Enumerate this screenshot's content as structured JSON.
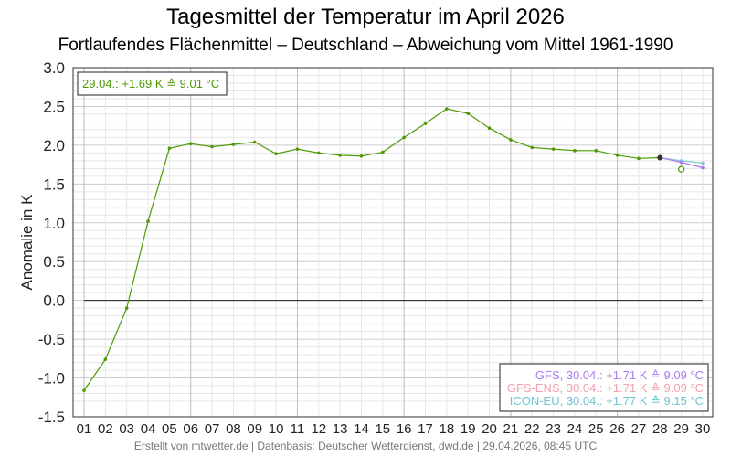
{
  "chart_data": {
    "type": "line",
    "title": "Tagesmittel der Temperatur im April 2026",
    "subtitle": "Fortlaufendes Flächenmittel – Deutschland – Abweichung vom Mittel 1961-1990",
    "ylabel": "Anomalie in K",
    "xlabel": "",
    "ylim": [
      -1.5,
      3.0
    ],
    "yticks": [
      "-1.5",
      "-1.0",
      "-0.5",
      "0.0",
      "0.5",
      "1.0",
      "1.5",
      "2.0",
      "2.5",
      "3.0"
    ],
    "xticks": [
      "01",
      "02",
      "03",
      "04",
      "05",
      "06",
      "07",
      "08",
      "09",
      "10",
      "11",
      "12",
      "13",
      "14",
      "15",
      "16",
      "17",
      "18",
      "19",
      "20",
      "21",
      "22",
      "23",
      "24",
      "25",
      "26",
      "27",
      "28",
      "29",
      "30"
    ],
    "grid": true,
    "series": [
      {
        "key": "obs",
        "color": "#4e9a06",
        "x": [
          1,
          2,
          3,
          4,
          5,
          6,
          7,
          8,
          9,
          10,
          11,
          12,
          13,
          14,
          15,
          16,
          17,
          18,
          19,
          20,
          21,
          22,
          23,
          24,
          25,
          26,
          27,
          28
        ],
        "values": [
          -1.16,
          -0.76,
          -0.1,
          1.02,
          1.96,
          2.02,
          1.98,
          2.01,
          2.04,
          1.89,
          1.95,
          1.9,
          1.87,
          1.86,
          1.91,
          2.1,
          2.28,
          2.47,
          2.41,
          2.22,
          2.07,
          1.97,
          1.95,
          1.93,
          1.93,
          1.87,
          1.83,
          1.84
        ]
      },
      {
        "name": "ICON-EU",
        "color": "#7ecbd6",
        "x": [
          28,
          29,
          30
        ],
        "values": [
          1.84,
          1.8,
          1.77
        ]
      },
      {
        "name": "GFS-ENS",
        "color": "#f2a0b0",
        "x": [
          28,
          29,
          30
        ],
        "values": [
          1.84,
          1.78,
          1.71
        ]
      },
      {
        "name": "GFS",
        "color": "#a97cf0",
        "x": [
          28,
          29,
          30
        ],
        "values": [
          1.84,
          1.78,
          1.71
        ]
      }
    ],
    "current_point": {
      "x": 29,
      "value": 1.69,
      "color": "#4e9a06"
    },
    "annotation": "29.04.: +1.69 K ≙ 9.01 °C",
    "legend_position": "bottom-right",
    "legend": [
      {
        "text": "GFS, 30.04.: +1.71 K ≙ 9.09 °C",
        "color": "#a97cf0"
      },
      {
        "text": "GFS-ENS, 30.04.: +1.71 K ≙ 9.09 °C",
        "color": "#f2a0b0"
      },
      {
        "text": "ICON-EU, 30.04.: +1.77 K ≙ 9.15 °C",
        "color": "#6cc3d0"
      }
    ]
  },
  "footer": "Erstellt von mtwetter.de | Datenbasis: Deutscher Wetterdienst, dwd.de | 29.04.2026, 08:45 UTC"
}
